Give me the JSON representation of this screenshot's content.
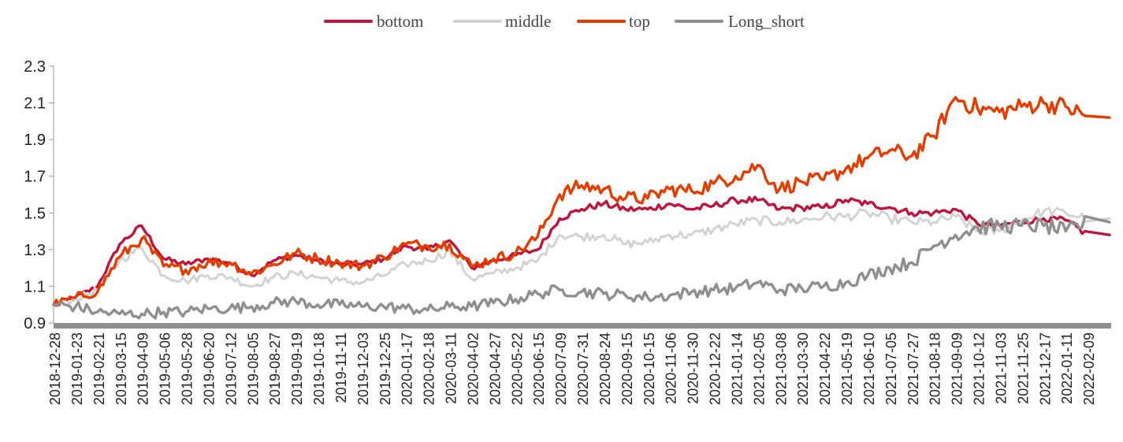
{
  "chart_data": {
    "type": "line",
    "title": "",
    "xlabel": "",
    "ylabel": "",
    "ylim": [
      0.9,
      2.3
    ],
    "yticks": [
      "0.9",
      "1.1",
      "1.3",
      "1.5",
      "1.7",
      "1.9",
      "2.1",
      "2.3"
    ],
    "legend_position": "top-center",
    "grid": false,
    "x": [
      "2018-12-28",
      "2019-01-23",
      "2019-02-21",
      "2019-03-15",
      "2019-04-09",
      "2019-05-06",
      "2019-05-28",
      "2019-06-20",
      "2019-07-12",
      "2019-08-05",
      "2019-08-27",
      "2019-09-19",
      "2019-10-18",
      "2019-11-11",
      "2019-12-03",
      "2019-12-25",
      "2020-01-17",
      "2020-02-18",
      "2020-03-11",
      "2020-04-02",
      "2020-04-27",
      "2020-05-22",
      "2020-06-15",
      "2020-07-09",
      "2020-07-31",
      "2020-08-24",
      "2020-09-15",
      "2020-10-15",
      "2020-11-06",
      "2020-11-30",
      "2020-12-22",
      "2021-01-14",
      "2021-02-05",
      "2021-03-08",
      "2021-03-30",
      "2021-04-22",
      "2021-05-19",
      "2021-06-10",
      "2021-07-05",
      "2021-07-27",
      "2021-08-18",
      "2021-09-09",
      "2021-10-12",
      "2021-11-03",
      "2021-11-25",
      "2021-12-17",
      "2022-01-11",
      "2022-02-09"
    ],
    "series": [
      {
        "name": "bottom",
        "color": "#C0143C",
        "values": [
          1.0,
          1.04,
          1.1,
          1.33,
          1.43,
          1.25,
          1.22,
          1.25,
          1.23,
          1.16,
          1.24,
          1.27,
          1.24,
          1.22,
          1.22,
          1.25,
          1.32,
          1.3,
          1.35,
          1.2,
          1.24,
          1.27,
          1.3,
          1.47,
          1.52,
          1.55,
          1.52,
          1.52,
          1.55,
          1.52,
          1.54,
          1.57,
          1.57,
          1.52,
          1.53,
          1.53,
          1.57,
          1.55,
          1.53,
          1.5,
          1.5,
          1.52,
          1.44,
          1.43,
          1.45,
          1.47,
          1.46,
          1.38
        ]
      },
      {
        "name": "middle",
        "color": "#D3D3D3",
        "values": [
          1.0,
          1.03,
          1.08,
          1.24,
          1.31,
          1.16,
          1.13,
          1.16,
          1.15,
          1.1,
          1.15,
          1.17,
          1.15,
          1.13,
          1.12,
          1.16,
          1.22,
          1.24,
          1.29,
          1.14,
          1.17,
          1.2,
          1.24,
          1.38,
          1.37,
          1.38,
          1.33,
          1.34,
          1.38,
          1.38,
          1.41,
          1.44,
          1.46,
          1.45,
          1.46,
          1.48,
          1.48,
          1.5,
          1.47,
          1.45,
          1.45,
          1.48,
          1.4,
          1.4,
          1.46,
          1.51,
          1.5,
          1.47
        ]
      },
      {
        "name": "top",
        "color": "#E63C00",
        "values": [
          1.0,
          1.04,
          1.07,
          1.26,
          1.36,
          1.21,
          1.19,
          1.23,
          1.23,
          1.17,
          1.22,
          1.28,
          1.25,
          1.23,
          1.21,
          1.26,
          1.33,
          1.32,
          1.33,
          1.21,
          1.25,
          1.28,
          1.37,
          1.6,
          1.65,
          1.63,
          1.58,
          1.58,
          1.63,
          1.62,
          1.66,
          1.7,
          1.76,
          1.63,
          1.67,
          1.68,
          1.74,
          1.8,
          1.84,
          1.81,
          1.92,
          2.13,
          2.07,
          2.05,
          2.08,
          2.1,
          2.08,
          2.02
        ]
      },
      {
        "name": "Long_short",
        "color": "#8F8F8F",
        "values": [
          1.0,
          0.99,
          0.96,
          0.95,
          0.95,
          0.96,
          0.96,
          0.98,
          0.98,
          0.99,
          1.01,
          1.02,
          1.0,
          1.0,
          0.99,
          0.99,
          0.98,
          0.97,
          0.99,
          0.99,
          1.01,
          1.03,
          1.06,
          1.08,
          1.07,
          1.06,
          1.05,
          1.04,
          1.05,
          1.07,
          1.08,
          1.09,
          1.12,
          1.08,
          1.09,
          1.1,
          1.12,
          1.16,
          1.2,
          1.23,
          1.32,
          1.38,
          1.42,
          1.43,
          1.43,
          1.43,
          1.4,
          1.45
        ]
      }
    ]
  }
}
